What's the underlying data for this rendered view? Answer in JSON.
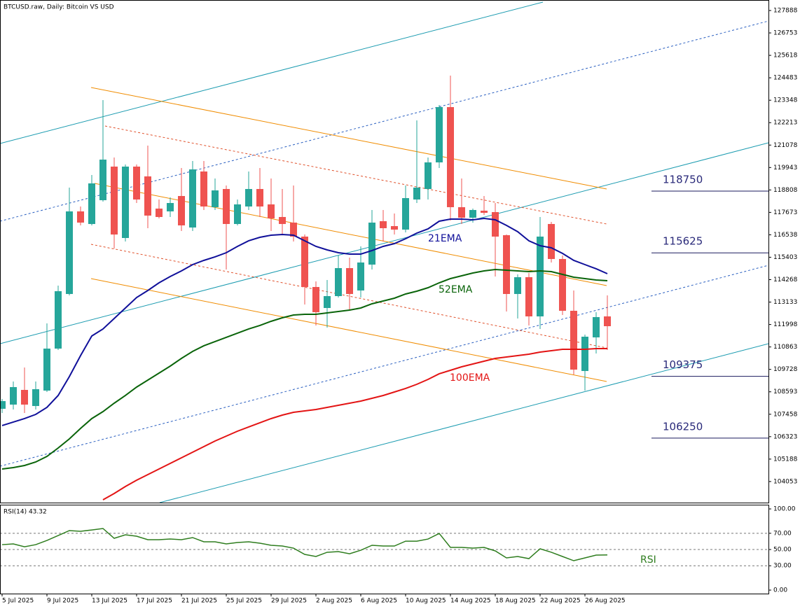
{
  "chart_data": [
    {
      "type": "candlestick",
      "title": "BTCUSD.raw, Daily:  Bitcoin VS USD",
      "categories": [
        "5 Jul 2025",
        null,
        null,
        null,
        "9 Jul 2025",
        null,
        null,
        null,
        "13 Jul 2025",
        null,
        null,
        null,
        "17 Jul 2025",
        null,
        null,
        null,
        "21 Jul 2025",
        null,
        null,
        null,
        "25 Jul 2025",
        null,
        null,
        null,
        "29 Jul 2025",
        null,
        null,
        null,
        "2 Aug 2025",
        null,
        null,
        null,
        "6 Aug 2025",
        null,
        null,
        null,
        "10 Aug 2025",
        null,
        null,
        null,
        "14 Aug 2025",
        null,
        null,
        null,
        "18 Aug 2025",
        null,
        null,
        null,
        "22 Aug 2025",
        null,
        null,
        null,
        "26 Aug 2025",
        null,
        null
      ],
      "open": [
        107734,
        107946,
        108690,
        107875,
        108655,
        110780,
        113543,
        117722,
        117085,
        118289,
        119989,
        116376,
        119989,
        119493,
        117864,
        117722,
        118501,
        116907,
        119741,
        117935,
        118856,
        117085,
        117970,
        118856,
        118076,
        117439,
        117155,
        116447,
        113897,
        112834,
        113436,
        114853,
        113720,
        115030,
        117226,
        116978,
        116801,
        118324,
        118856,
        120202,
        123000,
        117935,
        117403,
        117758,
        117687,
        116518,
        113543,
        114393,
        112409,
        117085,
        115314,
        112693,
        109646,
        111347,
        112409
      ],
      "high": [
        108230,
        109115,
        109823,
        109115,
        112055,
        113968,
        118926,
        117970,
        119564,
        123354,
        120449,
        120095,
        120095,
        121052,
        118324,
        118431,
        119918,
        120272,
        120272,
        119387,
        119033,
        118324,
        119741,
        119918,
        119387,
        118856,
        119033,
        116553,
        114180,
        114251,
        115491,
        115384,
        115951,
        117793,
        117793,
        117616,
        119033,
        122327,
        120449,
        123106,
        124594,
        119387,
        117864,
        118501,
        118147,
        116553,
        114534,
        114605,
        117439,
        117191,
        115491,
        113720,
        111488,
        112622,
        113472
      ],
      "low": [
        107521,
        107698,
        107521,
        107698,
        108584,
        110709,
        113472,
        117014,
        117014,
        118218,
        115845,
        116199,
        118147,
        116872,
        117368,
        117439,
        116730,
        116730,
        117793,
        117793,
        114782,
        117014,
        117793,
        117439,
        116730,
        116553,
        116199,
        113011,
        111949,
        111842,
        113365,
        112693,
        113365,
        114782,
        116199,
        116553,
        116660,
        118147,
        118324,
        119918,
        117262,
        117085,
        117155,
        117545,
        114428,
        112657,
        112303,
        111949,
        111772,
        115136,
        112480,
        109469,
        108655,
        110532,
        110709
      ],
      "close": [
        108123,
        108832,
        107946,
        108725,
        110780,
        113684,
        117722,
        117155,
        119139,
        120343,
        116553,
        119989,
        118324,
        117510,
        117439,
        118147,
        117014,
        119847,
        117970,
        118785,
        117085,
        118076,
        118856,
        117970,
        117368,
        117085,
        116447,
        113897,
        112622,
        113436,
        114853,
        113543,
        115136,
        117155,
        116872,
        116801,
        118395,
        118926,
        120202,
        123000,
        117935,
        117403,
        117793,
        117651,
        116447,
        113543,
        114393,
        112409,
        116447,
        115314,
        112693,
        109717,
        111382,
        112374,
        111913
      ],
      "up_color": "#26a69a",
      "down_color": "#ef5350",
      "series": [
        {
          "name": "21EMA",
          "color": "#10109a",
          "values": [
            106884,
            107061,
            107238,
            107450,
            107805,
            108407,
            109363,
            110426,
            111417,
            111772,
            112303,
            112834,
            113365,
            113720,
            114109,
            114428,
            114711,
            115030,
            115243,
            115420,
            115632,
            115951,
            116235,
            116412,
            116518,
            116553,
            116518,
            116235,
            115951,
            115774,
            115632,
            115562,
            115562,
            115739,
            115951,
            116093,
            116341,
            116624,
            116837,
            117226,
            117333,
            117333,
            117297,
            117368,
            117297,
            117014,
            116695,
            116235,
            115987,
            115880,
            115597,
            115243,
            115030,
            114818,
            114570
          ]
        },
        {
          "name": "52EMA",
          "color": "#0a640a",
          "values": [
            104688,
            104758,
            104865,
            105042,
            105325,
            105750,
            106211,
            106742,
            107238,
            107592,
            108017,
            108407,
            108832,
            109186,
            109540,
            109894,
            110284,
            110638,
            110922,
            111134,
            111347,
            111559,
            111772,
            111949,
            112161,
            112338,
            112480,
            112515,
            112515,
            112586,
            112657,
            112728,
            112834,
            113047,
            113188,
            113330,
            113543,
            113684,
            113861,
            114109,
            114322,
            114464,
            114605,
            114711,
            114782,
            114747,
            114711,
            114676,
            114711,
            114676,
            114534,
            114393,
            114322,
            114251,
            114216
          ]
        },
        {
          "name": "100EMA",
          "color": "#e31414",
          "values": [
            null,
            null,
            null,
            null,
            null,
            null,
            null,
            null,
            null,
            103129,
            103448,
            103802,
            104121,
            104404,
            104688,
            104971,
            105254,
            105538,
            105821,
            106104,
            106352,
            106600,
            106813,
            107025,
            107238,
            107415,
            107557,
            107627,
            107698,
            107805,
            107911,
            108017,
            108123,
            108265,
            108407,
            108584,
            108761,
            108973,
            109221,
            109505,
            109682,
            109859,
            110001,
            110142,
            110284,
            110355,
            110426,
            110496,
            110603,
            110674,
            110744,
            110744,
            110744,
            110780,
            110780
          ]
        }
      ],
      "levels": [
        118750,
        115625,
        109375,
        106250
      ],
      "ylim": [
        102987,
        128419
      ],
      "yticks": [
        127888,
        126753,
        125618,
        124483,
        123348,
        122213,
        121078,
        119943,
        118808,
        117673,
        116538,
        115403,
        114268,
        113133,
        111998,
        110863,
        109728,
        108593,
        107458,
        106323,
        105188,
        104053
      ]
    },
    {
      "type": "line",
      "title": "RSI(14) 43.32",
      "series": [
        {
          "name": "RSI",
          "color": "#2e7d1e",
          "values": [
            56.0,
            56.9,
            53.4,
            56.0,
            61.2,
            67.2,
            73.3,
            72.4,
            74.1,
            75.9,
            63.8,
            68.1,
            66.4,
            62.1,
            62.1,
            62.9,
            62.1,
            64.7,
            59.5,
            59.5,
            56.9,
            58.6,
            59.5,
            57.8,
            55.2,
            54.3,
            51.7,
            44.0,
            41.4,
            46.6,
            47.4,
            44.8,
            49.1,
            55.2,
            54.3,
            54.3,
            60.3,
            60.3,
            62.9,
            69.8,
            52.6,
            52.6,
            51.7,
            52.6,
            48.3,
            39.7,
            41.4,
            38.8,
            50.9,
            46.6,
            41.4,
            36.2,
            39.7,
            43.1,
            43.32
          ]
        }
      ],
      "ylim": [
        -4.3,
        105.2
      ],
      "yticks": [
        {
          "value": 100,
          "label": "100.00"
        },
        {
          "value": 70,
          "label": "70.00"
        },
        {
          "value": 50,
          "label": "50.00"
        },
        {
          "value": 30,
          "label": "30.00"
        },
        {
          "value": 0,
          "label": "0.00"
        }
      ]
    }
  ]
}
